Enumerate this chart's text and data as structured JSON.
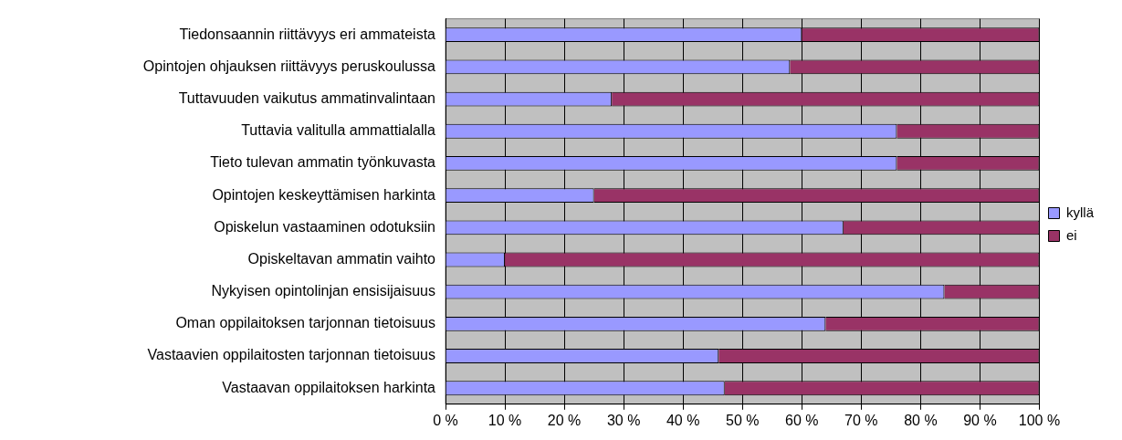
{
  "chart_data": {
    "type": "bar",
    "orientation": "horizontal",
    "stacked": true,
    "categories": [
      "Tiedonsaannin riittävyys eri ammateista",
      "Opintojen ohjauksen riittävyys peruskoulussa",
      "Tuttavuuden vaikutus ammatinvalintaan",
      "Tuttavia valitulla ammattialalla",
      "Tieto tulevan ammatin työnkuvasta",
      "Opintojen keskeyttämisen harkinta",
      "Opiskelun vastaaminen odotuksiin",
      "Opiskeltavan ammatin vaihto",
      "Nykyisen opintolinjan ensisijaisuus",
      "Oman oppilaitoksen tarjonnan tietoisuus",
      "Vastaavien oppilaitosten tarjonnan tietoisuus",
      "Vastaavan oppilaitoksen harkinta"
    ],
    "series": [
      {
        "name": "kyllä",
        "color": "#9999ff",
        "values": [
          60,
          58,
          28,
          76,
          76,
          25,
          67,
          10,
          84,
          64,
          46,
          47
        ]
      },
      {
        "name": "ei",
        "color": "#993366",
        "values": [
          40,
          42,
          72,
          24,
          24,
          75,
          33,
          90,
          16,
          36,
          54,
          53
        ]
      }
    ],
    "xlim": [
      0,
      100
    ],
    "xticks": [
      {
        "value": 0,
        "label": "0 %"
      },
      {
        "value": 10,
        "label": "10 %"
      },
      {
        "value": 20,
        "label": "20 %"
      },
      {
        "value": 30,
        "label": "30 %"
      },
      {
        "value": 40,
        "label": "40 %"
      },
      {
        "value": 50,
        "label": "50 %"
      },
      {
        "value": 60,
        "label": "60 %"
      },
      {
        "value": 70,
        "label": "70 %"
      },
      {
        "value": 80,
        "label": "80 %"
      },
      {
        "value": 90,
        "label": "90 %"
      },
      {
        "value": 100,
        "label": "100 %"
      }
    ],
    "grid": "x",
    "legend": "right"
  }
}
